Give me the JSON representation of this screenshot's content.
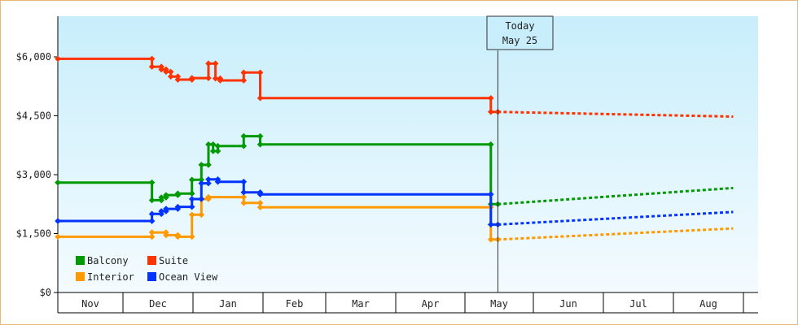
{
  "chart_data": {
    "type": "line",
    "x_axis": {
      "months": [
        "Nov",
        "Dec",
        "Jan",
        "Feb",
        "Mar",
        "Apr",
        "May",
        "Jun",
        "Jul",
        "Aug"
      ]
    },
    "y_axis": {
      "ticks": [
        {
          "value": 0,
          "label": "$0"
        },
        {
          "value": 1500,
          "label": "$1,500"
        },
        {
          "value": 3000,
          "label": "$3,000"
        },
        {
          "value": 4500,
          "label": "$4,500"
        },
        {
          "value": 6000,
          "label": "$6,000"
        }
      ],
      "ylim": [
        0,
        7000
      ]
    },
    "today": {
      "line1": "Today",
      "line2": "May 25",
      "x": 187
    },
    "grid": false,
    "legend_position": "bottom-left",
    "series": [
      {
        "name": "Suite",
        "color": "#ff3300",
        "points": [
          [
            0,
            5950
          ],
          [
            40,
            5950
          ],
          [
            40,
            5750
          ],
          [
            44,
            5750
          ],
          [
            44,
            5680
          ],
          [
            46,
            5680
          ],
          [
            46,
            5620
          ],
          [
            48,
            5620
          ],
          [
            48,
            5500
          ],
          [
            51,
            5500
          ],
          [
            51,
            5420
          ],
          [
            57,
            5420
          ],
          [
            57,
            5460
          ],
          [
            64,
            5460
          ],
          [
            64,
            5830
          ],
          [
            67,
            5830
          ],
          [
            67,
            5450
          ],
          [
            69,
            5450
          ],
          [
            69,
            5400
          ],
          [
            79,
            5400
          ],
          [
            79,
            5600
          ],
          [
            86,
            5600
          ],
          [
            86,
            4950
          ],
          [
            184,
            4950
          ],
          [
            184,
            4600
          ],
          [
            187,
            4600
          ]
        ],
        "forecast": [
          [
            187,
            4600
          ],
          [
            287,
            4480
          ]
        ]
      },
      {
        "name": "Balcony",
        "color": "#009900",
        "points": [
          [
            0,
            2800
          ],
          [
            40,
            2800
          ],
          [
            40,
            2350
          ],
          [
            44,
            2350
          ],
          [
            44,
            2420
          ],
          [
            46,
            2420
          ],
          [
            46,
            2480
          ],
          [
            51,
            2480
          ],
          [
            51,
            2520
          ],
          [
            57,
            2520
          ],
          [
            57,
            2870
          ],
          [
            61,
            2870
          ],
          [
            61,
            3250
          ],
          [
            64,
            3250
          ],
          [
            64,
            3770
          ],
          [
            66,
            3770
          ],
          [
            66,
            3600
          ],
          [
            68,
            3600
          ],
          [
            68,
            3730
          ],
          [
            79,
            3730
          ],
          [
            79,
            3980
          ],
          [
            86,
            3980
          ],
          [
            86,
            3770
          ],
          [
            184,
            3770
          ],
          [
            184,
            2250
          ],
          [
            187,
            2250
          ]
        ],
        "forecast": [
          [
            187,
            2250
          ],
          [
            287,
            2660
          ]
        ]
      },
      {
        "name": "Ocean View",
        "color": "#0033ff",
        "points": [
          [
            0,
            1820
          ],
          [
            40,
            1820
          ],
          [
            40,
            2000
          ],
          [
            44,
            2000
          ],
          [
            44,
            2070
          ],
          [
            46,
            2070
          ],
          [
            46,
            2130
          ],
          [
            51,
            2130
          ],
          [
            51,
            2180
          ],
          [
            57,
            2180
          ],
          [
            57,
            2380
          ],
          [
            61,
            2380
          ],
          [
            61,
            2780
          ],
          [
            64,
            2780
          ],
          [
            64,
            2880
          ],
          [
            68,
            2880
          ],
          [
            68,
            2820
          ],
          [
            79,
            2820
          ],
          [
            79,
            2550
          ],
          [
            86,
            2550
          ],
          [
            86,
            2500
          ],
          [
            184,
            2500
          ],
          [
            184,
            1730
          ],
          [
            187,
            1730
          ]
        ],
        "forecast": [
          [
            187,
            1730
          ],
          [
            287,
            2050
          ]
        ]
      },
      {
        "name": "Interior",
        "color": "#ff9900",
        "points": [
          [
            0,
            1420
          ],
          [
            40,
            1420
          ],
          [
            40,
            1530
          ],
          [
            46,
            1530
          ],
          [
            46,
            1460
          ],
          [
            51,
            1460
          ],
          [
            51,
            1420
          ],
          [
            57,
            1420
          ],
          [
            57,
            1980
          ],
          [
            61,
            1980
          ],
          [
            61,
            2380
          ],
          [
            64,
            2380
          ],
          [
            64,
            2430
          ],
          [
            79,
            2430
          ],
          [
            79,
            2280
          ],
          [
            86,
            2280
          ],
          [
            86,
            2170
          ],
          [
            184,
            2170
          ],
          [
            184,
            1350
          ],
          [
            187,
            1350
          ]
        ],
        "forecast": [
          [
            187,
            1350
          ],
          [
            287,
            1630
          ]
        ]
      }
    ]
  },
  "legend": [
    {
      "label": "Balcony",
      "color": "#009900"
    },
    {
      "label": "Suite",
      "color": "#ff3300"
    },
    {
      "label": "Interior",
      "color": "#ff9900"
    },
    {
      "label": "Ocean View",
      "color": "#0033ff"
    }
  ]
}
